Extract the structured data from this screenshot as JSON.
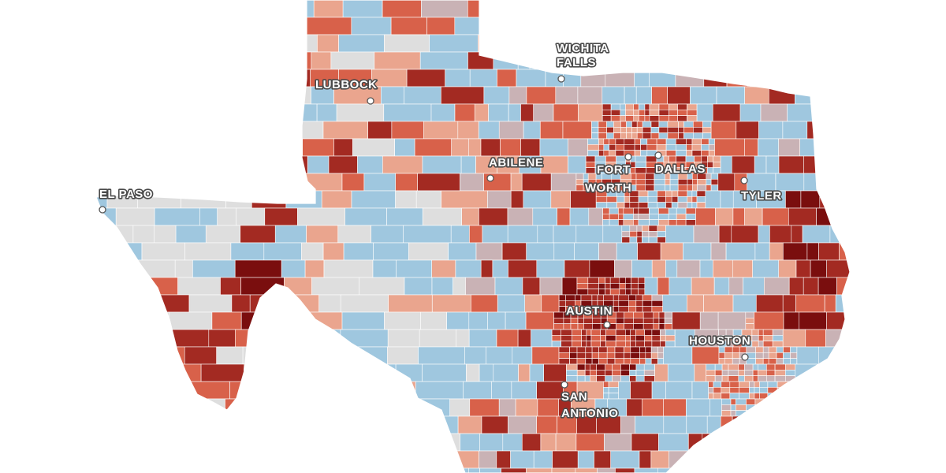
{
  "palette": {
    "strong_red": "#7a0e0e",
    "dark_red": "#a32a22",
    "red": "#d8614a",
    "salmon": "#eaa58e",
    "mauve": "#c9b2b5",
    "light_blue": "#9fc7df",
    "gray": "#dedede",
    "boundary": "#ffffff"
  },
  "cities": [
    {
      "id": "wichita-falls",
      "lines": [
        "WICHITA",
        "FALLS"
      ]
    },
    {
      "id": "lubbock",
      "lines": [
        "LUBBOCK"
      ]
    },
    {
      "id": "abilene",
      "lines": [
        "ABILENE"
      ]
    },
    {
      "id": "el-paso",
      "lines": [
        "EL PASO"
      ]
    },
    {
      "id": "fort-worth",
      "lines": [
        "FORT",
        "WORTH"
      ]
    },
    {
      "id": "dallas",
      "lines": [
        "DALLAS"
      ]
    },
    {
      "id": "tyler",
      "lines": [
        "TYLER"
      ]
    },
    {
      "id": "austin",
      "lines": [
        "AUSTIN"
      ]
    },
    {
      "id": "houston",
      "lines": [
        "HOUSTON"
      ]
    },
    {
      "id": "san-antonio",
      "lines": [
        "SAN",
        "ANTONIO"
      ]
    }
  ]
}
